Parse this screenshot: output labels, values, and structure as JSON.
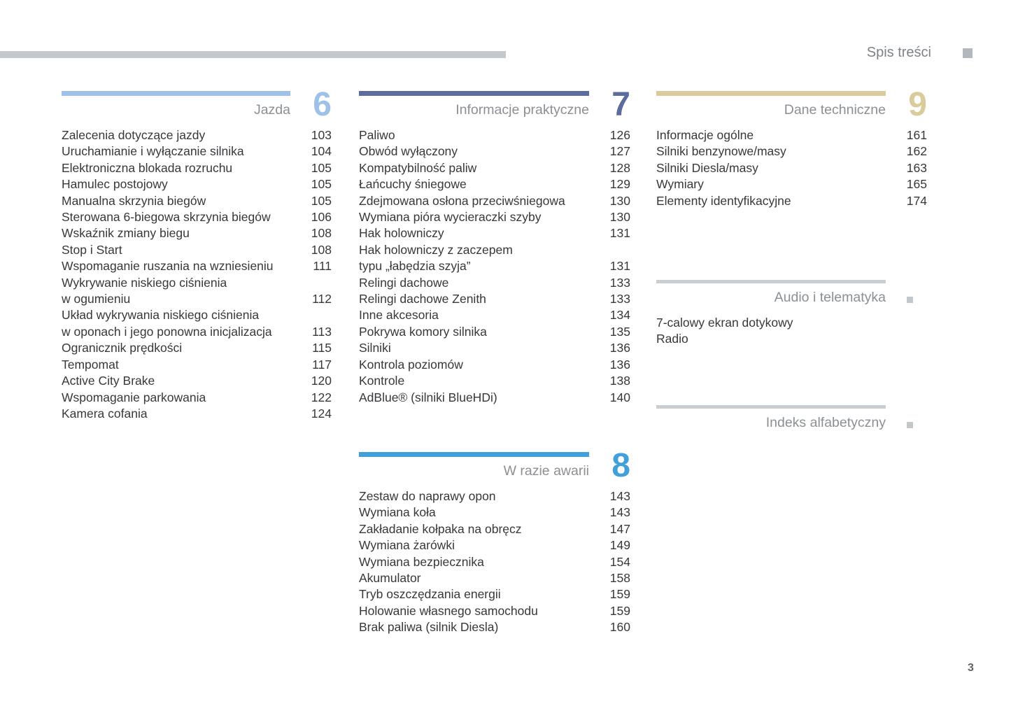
{
  "header": {
    "title": "Spis treści"
  },
  "footer": {
    "page_number": "3"
  },
  "colors": {
    "top_rule": "#c4c9cd",
    "header_square": "#b3b8bd",
    "section_title_grey": "#8b9095",
    "body_text": "#38383c"
  },
  "sections": [
    {
      "id": "jazda",
      "column": 1,
      "number": "6",
      "title": "Jazda",
      "accent": "#9fc1e8",
      "items": [
        {
          "label": "Zalecenia dotyczące jazdy",
          "page": "103"
        },
        {
          "label": "Uruchamianie i wyłączanie silnika",
          "page": "104"
        },
        {
          "label": "Elektroniczna blokada rozruchu",
          "page": "105"
        },
        {
          "label": "Hamulec postojowy",
          "page": "105"
        },
        {
          "label": "Manualna skrzynia biegów",
          "page": "105"
        },
        {
          "label": "Sterowana 6-biegowa skrzynia biegów",
          "page": "106"
        },
        {
          "label": "Wskaźnik zmiany biegu",
          "page": "108"
        },
        {
          "label": "Stop i Start",
          "page": "108"
        },
        {
          "label": "Wspomaganie ruszania na wzniesieniu",
          "page": "111"
        },
        {
          "label": "Wykrywanie niskiego ciśnienia\nw ogumieniu",
          "page": "112"
        },
        {
          "label": "Układ wykrywania niskiego ciśnienia\nw oponach i jego ponowna inicjalizacja",
          "page": "113"
        },
        {
          "label": "Ogranicznik prędkości",
          "page": "115"
        },
        {
          "label": "Tempomat",
          "page": "117"
        },
        {
          "label": "Active City Brake",
          "page": "120"
        },
        {
          "label": "Wspomaganie parkowania",
          "page": "122"
        },
        {
          "label": "Kamera cofania",
          "page": "124"
        }
      ]
    },
    {
      "id": "informacje-praktyczne",
      "column": 2,
      "number": "7",
      "title": "Informacje praktyczne",
      "accent": "#5d6c9f",
      "items": [
        {
          "label": "Paliwo",
          "page": "126"
        },
        {
          "label": "Obwód wyłączony",
          "page": "127"
        },
        {
          "label": "Kompatybilność paliw",
          "page": "128"
        },
        {
          "label": "Łańcuchy śniegowe",
          "page": "129"
        },
        {
          "label": "Zdejmowana osłona przeciwśniegowa",
          "page": "130"
        },
        {
          "label": "Wymiana pióra wycieraczki szyby",
          "page": "130"
        },
        {
          "label": "Hak holowniczy",
          "page": "131"
        },
        {
          "label": "Hak holowniczy z zaczepem\ntypu „łabędzia szyja”",
          "page": "131"
        },
        {
          "label": "Relingi dachowe",
          "page": "133"
        },
        {
          "label": "Relingi dachowe Zenith",
          "page": "133"
        },
        {
          "label": "Inne akcesoria",
          "page": "134"
        },
        {
          "label": "Pokrywa komory silnika",
          "page": "135"
        },
        {
          "label": "Silniki",
          "page": "136"
        },
        {
          "label": "Kontrola poziomów",
          "page": "136"
        },
        {
          "label": "Kontrole",
          "page": "138"
        },
        {
          "label": "AdBlue® (silniki BlueHDi)",
          "page": "140"
        }
      ]
    },
    {
      "id": "w-razie-awarii",
      "column": 2,
      "number": "8",
      "title": "W razie awarii",
      "accent": "#41a0da",
      "items": [
        {
          "label": "Zestaw do naprawy opon",
          "page": "143"
        },
        {
          "label": "Wymiana koła",
          "page": "143"
        },
        {
          "label": "Zakładanie kołpaka na obręcz",
          "page": "147"
        },
        {
          "label": "Wymiana żarówki",
          "page": "149"
        },
        {
          "label": "Wymiana bezpiecznika",
          "page": "154"
        },
        {
          "label": "Akumulator",
          "page": "158"
        },
        {
          "label": "Tryb oszczędzania energii",
          "page": "159"
        },
        {
          "label": "Holowanie własnego samochodu",
          "page": "159"
        },
        {
          "label": "Brak paliwa (silnik Diesla)",
          "page": "160"
        }
      ]
    },
    {
      "id": "dane-techniczne",
      "column": 3,
      "number": "9",
      "title": "Dane techniczne",
      "accent": "#d9cb9b",
      "items": [
        {
          "label": "Informacje ogólne",
          "page": "161"
        },
        {
          "label": "Silniki benzynowe/masy",
          "page": "162"
        },
        {
          "label": "Silniki Diesla/masy",
          "page": "163"
        },
        {
          "label": "Wymiary",
          "page": "165"
        },
        {
          "label": "Elementy identyfikacyjne",
          "page": "174"
        }
      ]
    },
    {
      "id": "audio-i-telematyka",
      "column": 3,
      "square": true,
      "title": "Audio i telematyka",
      "accent": "#c9ced3",
      "items": [
        {
          "label": "7-calowy ekran dotykowy",
          "page": ""
        },
        {
          "label": "Radio",
          "page": ""
        }
      ]
    },
    {
      "id": "indeks-alfabetyczny",
      "column": 3,
      "square": true,
      "title": "Indeks alfabetyczny",
      "accent": "#c9ced3",
      "items": []
    }
  ]
}
